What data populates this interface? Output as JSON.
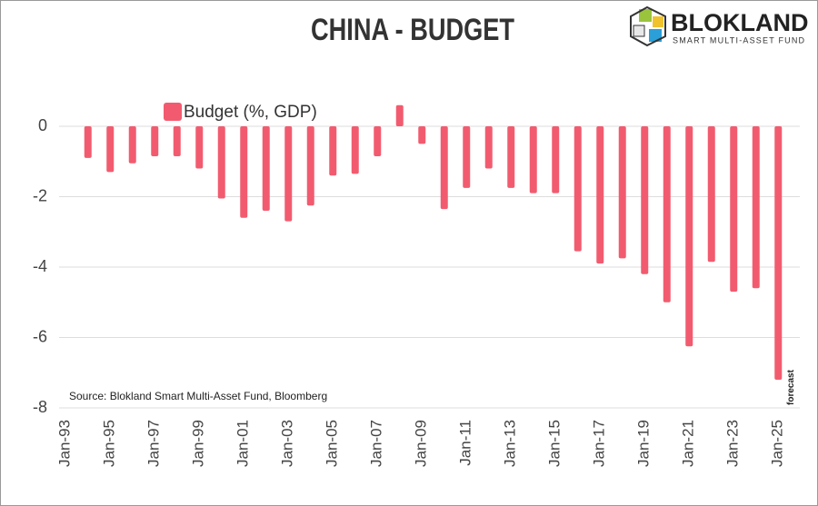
{
  "chart_data": {
    "type": "bar",
    "title": "CHINA - BUDGET",
    "logo_title": "BLOKLAND",
    "logo_subtitle": "SMART MULTI-ASSET FUND",
    "source": "Source: Blokland Smart Multi-Asset Fund, Bloomberg",
    "annotation": "forecast",
    "categories": [
      "Jan-93",
      null,
      "Jan-95",
      null,
      "Jan-97",
      null,
      "Jan-99",
      null,
      "Jan-01",
      null,
      "Jan-03",
      null,
      "Jan-05",
      null,
      "Jan-07",
      null,
      "Jan-09",
      null,
      "Jan-11",
      null,
      "Jan-13",
      null,
      "Jan-15",
      null,
      "Jan-17",
      null,
      "Jan-19",
      null,
      "Jan-21",
      null,
      "Jan-23",
      null,
      "Jan-25"
    ],
    "series": [
      {
        "name": "Budget (%, GDP)",
        "color": "#f25b6f",
        "values": [
          null,
          -0.9,
          -1.3,
          -1.05,
          -0.85,
          -0.85,
          -1.2,
          -2.05,
          -2.6,
          -2.4,
          -2.7,
          -2.25,
          -1.4,
          -1.35,
          -0.85,
          0.6,
          -0.5,
          -2.35,
          -1.75,
          -1.2,
          -1.75,
          -1.9,
          -1.9,
          -3.55,
          -3.9,
          -3.75,
          -4.2,
          -5.0,
          -6.25,
          -3.85,
          -4.7,
          -4.6,
          -7.2
        ]
      }
    ],
    "ylim": [
      -8,
      1
    ],
    "yticks": [
      -8,
      -6,
      -4,
      -2,
      0
    ],
    "grid": true
  }
}
